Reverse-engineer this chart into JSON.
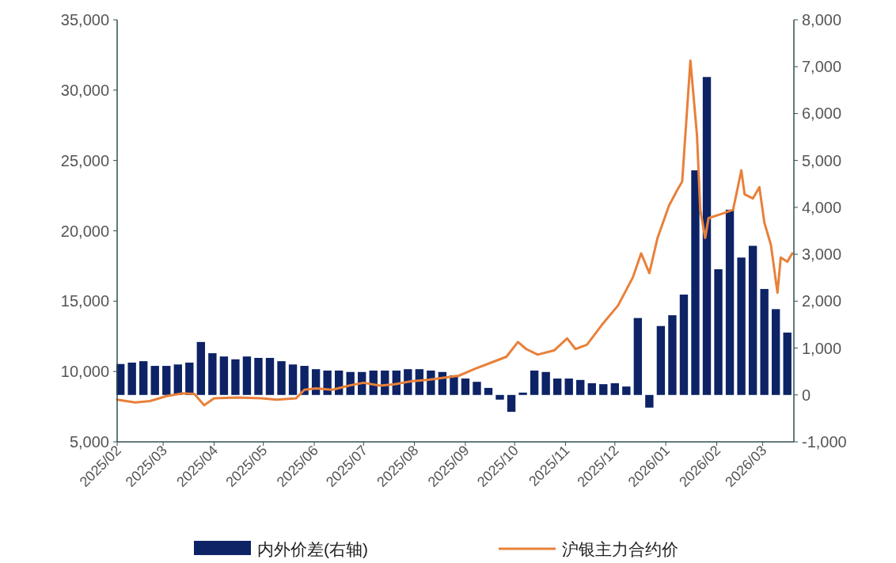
{
  "chart_data": {
    "type": "bar",
    "legend": "bottom",
    "grid": false,
    "xlim": [
      "2025-02-01",
      "2026-03-20"
    ],
    "xticks": [
      {
        "value": "2025-02",
        "label": "2025/02"
      },
      {
        "value": "2025-03",
        "label": "2025/03"
      },
      {
        "value": "2025-04",
        "label": "2025/04"
      },
      {
        "value": "2025-05",
        "label": "2025/05"
      },
      {
        "value": "2025-06",
        "label": "2025/06"
      },
      {
        "value": "2025-07",
        "label": "2025/07"
      },
      {
        "value": "2025-08",
        "label": "2025/08"
      },
      {
        "value": "2025-09",
        "label": "2025/09"
      },
      {
        "value": "2025-10",
        "label": "2025/10"
      },
      {
        "value": "2025-11",
        "label": "2025/11"
      },
      {
        "value": "2025-12",
        "label": "2025/12"
      },
      {
        "value": "2026-01",
        "label": "2026/01"
      },
      {
        "value": "2026-02",
        "label": "2026/02"
      },
      {
        "value": "2026-03",
        "label": "2026/03"
      }
    ],
    "ylim": [
      5000,
      35000
    ],
    "yticks": [
      {
        "value": 5000,
        "label": "5,000"
      },
      {
        "value": 10000,
        "label": "10,000"
      },
      {
        "value": 15000,
        "label": "15,000"
      },
      {
        "value": 20000,
        "label": "20,000"
      },
      {
        "value": 25000,
        "label": "25,000"
      },
      {
        "value": 30000,
        "label": "30,000"
      },
      {
        "value": 35000,
        "label": "35,000"
      }
    ],
    "y2lim": [
      -1000,
      8000
    ],
    "y2ticks": [
      {
        "value": -1000,
        "label": "-1,000"
      },
      {
        "value": 0,
        "label": "0"
      },
      {
        "value": 1000,
        "label": "1,000"
      },
      {
        "value": 2000,
        "label": "2,000"
      },
      {
        "value": 3000,
        "label": "3,000"
      },
      {
        "value": 4000,
        "label": "4,000"
      },
      {
        "value": 5000,
        "label": "5,000"
      },
      {
        "value": 6000,
        "label": "6,000"
      },
      {
        "value": 7000,
        "label": "7,000"
      },
      {
        "value": 8000,
        "label": "8,000"
      }
    ],
    "series": [
      {
        "name": "内外价差(右轴)",
        "axis": "y2",
        "color": "#0d2366",
        "x": [
          "2025-02-03",
          "2025-02-10",
          "2025-02-17",
          "2025-02-24",
          "2025-03-03",
          "2025-03-10",
          "2025-03-17",
          "2025-03-24",
          "2025-03-31",
          "2025-04-07",
          "2025-04-14",
          "2025-04-21",
          "2025-04-28",
          "2025-05-05",
          "2025-05-12",
          "2025-05-19",
          "2025-05-26",
          "2025-06-02",
          "2025-06-09",
          "2025-06-16",
          "2025-06-23",
          "2025-06-30",
          "2025-07-07",
          "2025-07-14",
          "2025-07-21",
          "2025-07-28",
          "2025-08-04",
          "2025-08-11",
          "2025-08-18",
          "2025-08-25",
          "2025-09-01",
          "2025-09-08",
          "2025-09-15",
          "2025-09-22",
          "2025-09-29",
          "2025-10-06",
          "2025-10-13",
          "2025-10-20",
          "2025-10-27",
          "2025-11-03",
          "2025-11-10",
          "2025-11-17",
          "2025-11-24",
          "2025-12-01",
          "2025-12-08",
          "2025-12-15",
          "2025-12-22",
          "2025-12-29",
          "2026-01-05",
          "2026-01-12",
          "2026-01-19",
          "2026-01-26",
          "2026-02-02",
          "2026-02-09",
          "2026-02-16",
          "2026-02-23",
          "2026-03-02",
          "2026-03-09",
          "2026-03-16"
        ],
        "values": [
          660,
          690,
          720,
          620,
          620,
          650,
          690,
          1130,
          890,
          820,
          760,
          820,
          790,
          790,
          720,
          650,
          620,
          550,
          520,
          520,
          490,
          490,
          520,
          520,
          520,
          550,
          550,
          520,
          490,
          420,
          350,
          280,
          150,
          -100,
          -360,
          50,
          520,
          490,
          350,
          350,
          320,
          250,
          230,
          250,
          180,
          1640,
          -270,
          1470,
          1700,
          2140,
          4790,
          6780,
          2680,
          3950,
          2930,
          3180,
          2260,
          1830,
          1330
        ]
      },
      {
        "name": "沪银主力合约价",
        "type": "line",
        "color": "#e8803a",
        "x": [
          "2025-02-01",
          "2025-02-12",
          "2025-02-21",
          "2025-03-03",
          "2025-03-13",
          "2025-03-20",
          "2025-03-26",
          "2025-04-01",
          "2025-04-15",
          "2025-04-30",
          "2025-05-09",
          "2025-05-21",
          "2025-05-26",
          "2025-06-02",
          "2025-06-12",
          "2025-06-22",
          "2025-07-01",
          "2025-07-11",
          "2025-07-20",
          "2025-07-30",
          "2025-08-09",
          "2025-08-18",
          "2025-08-28",
          "2025-09-07",
          "2025-09-16",
          "2025-09-26",
          "2025-10-03",
          "2025-10-08",
          "2025-10-15",
          "2025-10-25",
          "2025-11-02",
          "2025-11-07",
          "2025-11-14",
          "2025-11-23",
          "2025-12-03",
          "2025-12-12",
          "2025-12-17",
          "2025-12-22",
          "2025-12-27",
          "2026-01-03",
          "2026-01-08",
          "2026-01-11",
          "2026-01-16",
          "2026-01-20",
          "2026-01-22",
          "2026-01-25",
          "2026-01-27",
          "2026-02-04",
          "2026-02-11",
          "2026-02-16",
          "2026-02-18",
          "2026-02-23",
          "2026-02-27",
          "2026-03-02",
          "2026-03-06",
          "2026-03-10",
          "2026-03-12",
          "2026-03-16",
          "2026-03-19"
        ],
        "values": [
          8000,
          7800,
          7900,
          8250,
          8450,
          8400,
          7600,
          8100,
          8150,
          8100,
          8000,
          8100,
          8700,
          8800,
          8700,
          9000,
          9200,
          9000,
          9100,
          9300,
          9400,
          9550,
          9700,
          10200,
          10600,
          11050,
          12100,
          11600,
          11200,
          11500,
          12350,
          11600,
          11900,
          13300,
          14700,
          16700,
          18400,
          17000,
          19500,
          21800,
          22900,
          23500,
          32100,
          26800,
          21500,
          19500,
          20900,
          21200,
          21500,
          24300,
          22600,
          22300,
          23100,
          20600,
          19000,
          15600,
          18100,
          17800,
          18400
        ]
      }
    ]
  }
}
